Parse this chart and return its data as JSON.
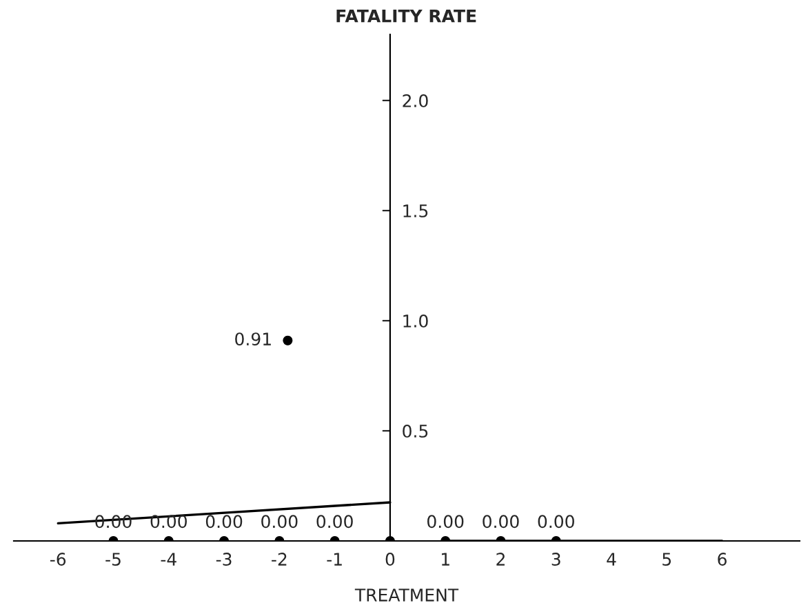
{
  "chart_data": {
    "type": "scatter",
    "title": "FATALITY RATE",
    "xlabel": "TREATMENT",
    "xlim": [
      -6.8,
      7.4
    ],
    "ylim": [
      0,
      2.3
    ],
    "xticks": [
      -6,
      -5,
      -4,
      -3,
      -2,
      -1,
      0,
      1,
      2,
      3,
      4,
      5,
      6
    ],
    "yticks": [
      0.5,
      {
        "value": 1,
        "label": "1.0"
      },
      1.5,
      {
        "value": 2,
        "label": "2.0"
      }
    ],
    "series": [
      {
        "marker": "circle",
        "color": "#000000",
        "x": [
          -5,
          -4,
          -3,
          -2,
          -1,
          0,
          1,
          2,
          3
        ],
        "values": [
          0,
          0,
          0,
          0,
          0,
          0,
          0,
          0,
          0
        ],
        "value_labels": [
          "0.00",
          "0.00",
          "0.00",
          "0.00",
          "0.00",
          null,
          "0.00",
          "0.00",
          "0.00"
        ]
      },
      {
        "marker": "circle",
        "color": "#000000",
        "x": [
          -1.85
        ],
        "values": [
          0.91
        ]
      },
      {
        "type": "line",
        "marker": "none",
        "color": "#000000",
        "x": [
          -6,
          0
        ],
        "values": [
          0.08,
          0.175
        ]
      },
      {
        "type": "line",
        "marker": "none",
        "color": "#000000",
        "x": [
          1,
          6
        ],
        "values": [
          0,
          0
        ]
      }
    ],
    "annotations": [
      {
        "text": "0.91",
        "x": -1.85,
        "y": 0.91
      }
    ],
    "grid": false,
    "legend": false
  }
}
